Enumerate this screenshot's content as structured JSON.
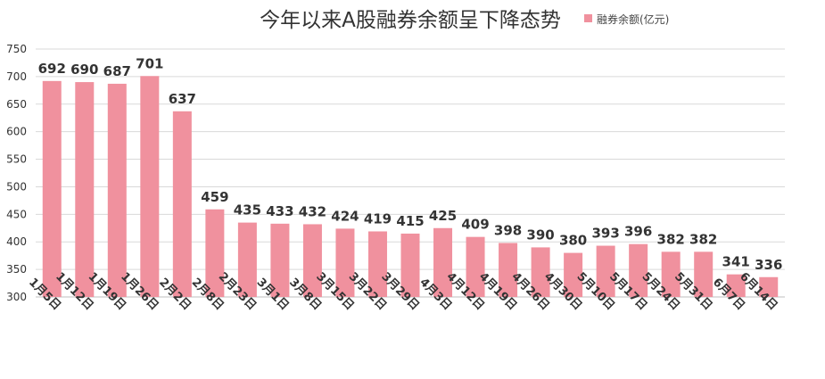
{
  "chart_data": {
    "type": "bar",
    "title": "今年以来A股融券余额呈下降态势",
    "xlabel": "",
    "ylabel": "",
    "ylim": [
      300,
      750
    ],
    "yticks": [
      300,
      350,
      400,
      450,
      500,
      550,
      600,
      650,
      700,
      750
    ],
    "grid": true,
    "legend": "top-right",
    "categories": [
      "1月5日",
      "1月12日",
      "1月19日",
      "1月26日",
      "2月2日",
      "2月8日",
      "2月23日",
      "3月1日",
      "3月8日",
      "3月15日",
      "3月22日",
      "3月29日",
      "4月3日",
      "4月12日",
      "4月19日",
      "4月26日",
      "4月30日",
      "5月10日",
      "5月17日",
      "5月24日",
      "5月31日",
      "6月7日",
      "6月14日"
    ],
    "series": [
      {
        "name": "融券余额(亿元)",
        "color": "#f0919e",
        "values": [
          692,
          690,
          687,
          701,
          637,
          459,
          435,
          433,
          432,
          424,
          419,
          415,
          425,
          409,
          398,
          390,
          380,
          393,
          396,
          382,
          382,
          341,
          336
        ]
      }
    ]
  }
}
